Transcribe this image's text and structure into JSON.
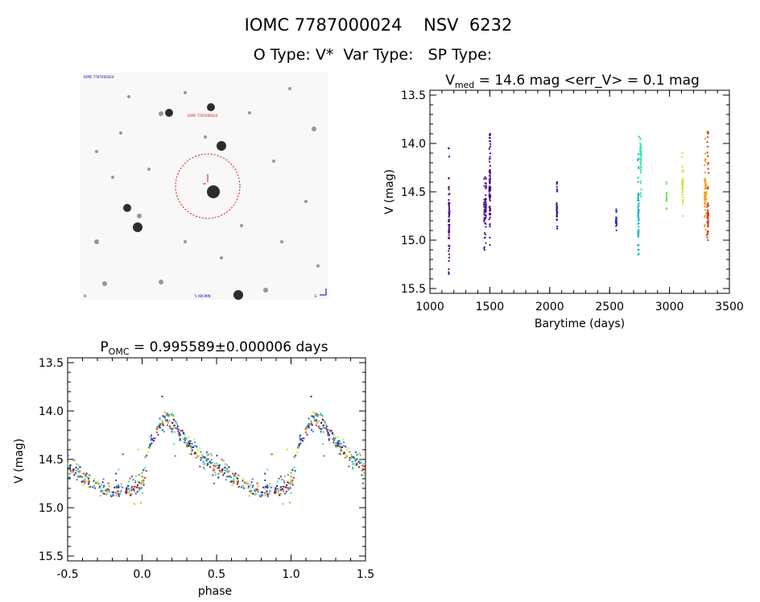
{
  "header": {
    "title": "IOMC 7787000024    NSV  6232",
    "subtitle": "O Type: V*  Var Type:   SP Type:"
  },
  "image_panel": {
    "type": "finder_chart",
    "label_top_left": "IOMC 7787000024",
    "label_target": "IOMC 7787000024",
    "label_bottom_left": "N",
    "label_bottom_center": "5 ARCMIN",
    "label_bottom_right": "E"
  },
  "chart_data": [
    {
      "id": "lightcurve",
      "type": "scatter",
      "title_main": "V",
      "title_sub": "med",
      "title_rest": " = 14.6 mag <err_V> = 0.1 mag",
      "xlabel": "Barytime (days)",
      "ylabel": "V (mag)",
      "xlim": [
        1000,
        3500
      ],
      "ylim": [
        15.55,
        13.45
      ],
      "xticks": [
        1000,
        1500,
        2000,
        2500,
        3000,
        3500
      ],
      "yticks": [
        13.5,
        14.0,
        14.5,
        15.0,
        15.5
      ],
      "clusters": [
        {
          "x": 1160,
          "xspread": 8,
          "min": 14.05,
          "max": 15.35,
          "median": 14.85,
          "n": 60,
          "color": "#4b0082"
        },
        {
          "x": 1460,
          "xspread": 20,
          "min": 14.35,
          "max": 15.1,
          "median": 14.7,
          "n": 70,
          "color": "#4b1f8c"
        },
        {
          "x": 1500,
          "xspread": 10,
          "min": 13.9,
          "max": 15.05,
          "median": 14.45,
          "n": 80,
          "color": "#4b0a8c"
        },
        {
          "x": 2060,
          "xspread": 6,
          "min": 14.4,
          "max": 14.88,
          "median": 14.7,
          "n": 35,
          "color": "#3d1aa0"
        },
        {
          "x": 2555,
          "xspread": 10,
          "min": 14.68,
          "max": 14.9,
          "median": 14.8,
          "n": 30,
          "color": "#1f3fc8"
        },
        {
          "x": 2740,
          "xspread": 10,
          "min": 13.93,
          "max": 15.15,
          "median": 14.75,
          "n": 60,
          "color": "#1ab4c8"
        },
        {
          "x": 2760,
          "xspread": 10,
          "min": 13.95,
          "max": 14.55,
          "median": 14.1,
          "n": 50,
          "color": "#32e6b4"
        },
        {
          "x": 2975,
          "xspread": 6,
          "min": 14.4,
          "max": 14.68,
          "median": 14.55,
          "n": 14,
          "color": "#6ee650"
        },
        {
          "x": 3110,
          "xspread": 10,
          "min": 14.1,
          "max": 14.75,
          "median": 14.4,
          "n": 35,
          "color": "#c8e632"
        },
        {
          "x": 3300,
          "xspread": 18,
          "min": 13.95,
          "max": 14.95,
          "median": 14.55,
          "n": 60,
          "color": "#f0a01e"
        },
        {
          "x": 3320,
          "xspread": 12,
          "min": 13.88,
          "max": 15.0,
          "median": 14.75,
          "n": 55,
          "color": "#d23c1e"
        }
      ]
    },
    {
      "id": "phased",
      "type": "scatter",
      "title_main": "P",
      "title_sub": "OMC",
      "title_rest": " = 0.995589±0.000006 days",
      "xlabel": "phase",
      "ylabel": "V (mag)",
      "xlim": [
        -0.5,
        1.5
      ],
      "ylim": [
        15.55,
        13.45
      ],
      "xticks": [
        -0.5,
        0.0,
        0.5,
        1.0,
        1.5
      ],
      "xticklabels": [
        "-0.5",
        "0.0",
        "0.5",
        "1.0",
        "1.5"
      ],
      "yticks": [
        13.5,
        14.0,
        14.5,
        15.0,
        15.5
      ],
      "period_days": 0.995589,
      "curve": [
        [
          0.0,
          14.75
        ],
        [
          0.05,
          14.35
        ],
        [
          0.1,
          14.2
        ],
        [
          0.15,
          14.05
        ],
        [
          0.2,
          14.12
        ],
        [
          0.3,
          14.32
        ],
        [
          0.4,
          14.48
        ],
        [
          0.5,
          14.58
        ],
        [
          0.6,
          14.68
        ],
        [
          0.7,
          14.78
        ],
        [
          0.8,
          14.82
        ],
        [
          0.9,
          14.8
        ],
        [
          1.0,
          14.75
        ]
      ],
      "colors": [
        "#4b0082",
        "#3a2ab4",
        "#1f4fd2",
        "#1aa0c8",
        "#32e6b4",
        "#c8e632",
        "#f0a01e",
        "#d23c1e"
      ],
      "n_points": 420
    }
  ]
}
